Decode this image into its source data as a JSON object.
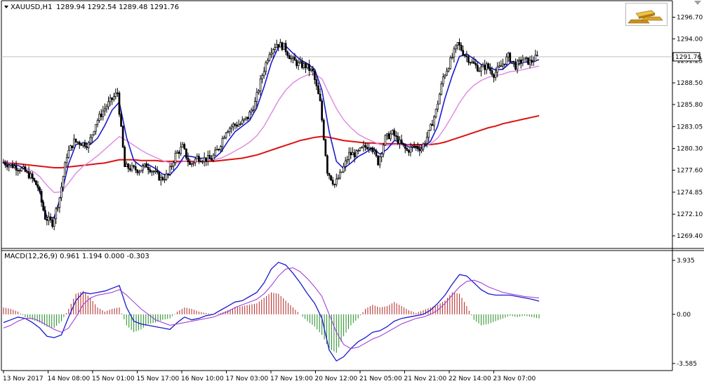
{
  "main_header": {
    "symbol_label": "XAUUSD,H1",
    "ohlc_text": "1289.94 1292.54 1289.48 1291.76"
  },
  "macd_header": {
    "text": "MACD(12,26,9) 0.961 1.194 0.000 -0.303"
  },
  "current_price_label": "1291.76",
  "colors": {
    "candles": "#000000",
    "fast_ma": "#1a1acd",
    "mid_ma": "#e08ee0",
    "slow_ma": "#dd1111",
    "macd_hist_pos": "#b22222",
    "macd_hist_neg": "#228b22",
    "macd_line": "#1a1acd",
    "signal_line": "#9b30d9",
    "price_line": "#c0c0c0"
  },
  "icons": {
    "gold_bars": "gold-bars-icon",
    "collapse": "collapse-icon"
  },
  "chart_data": [
    {
      "type": "candlestick",
      "ylim": [
        1268.0,
        1298.5
      ],
      "y_ticks": [
        "1296.70",
        "1294.00",
        "1291.25",
        "1288.50",
        "1285.80",
        "1283.05",
        "1280.30",
        "1277.60",
        "1274.85",
        "1272.10",
        "1269.40"
      ],
      "current_price": 1291.76,
      "x_ticks": [
        "13 Nov 2017",
        "14 Nov 08:00",
        "15 Nov 01:00",
        "15 Nov 17:00",
        "16 Nov 10:00",
        "17 Nov 03:00",
        "17 Nov 19:00",
        "20 Nov 12:00",
        "21 Nov 05:00",
        "21 Nov 21:00",
        "22 Nov 14:00",
        "23 Nov 07:00"
      ],
      "series": [
        {
          "kind": "close_path",
          "values": [
            1278.6,
            1278.3,
            1278.0,
            1277.6,
            1276.8,
            1275.5,
            1271.7,
            1271.0,
            1274.2,
            1279.5,
            1281.2,
            1281.0,
            1280.8,
            1283.5,
            1285.0,
            1286.2,
            1287.3,
            1278.0,
            1277.8,
            1277.6,
            1278.2,
            1277.4,
            1276.5,
            1277.0,
            1279.5,
            1280.5,
            1278.2,
            1279.2,
            1279.0,
            1279.0,
            1280.4,
            1282.6,
            1283.2,
            1283.4,
            1284.2,
            1286.0,
            1289.5,
            1292.4,
            1293.4,
            1293.0,
            1291.5,
            1290.8,
            1290.6,
            1289.8,
            1286.0,
            1277.5,
            1275.8,
            1277.4,
            1279.6,
            1279.6,
            1280.4,
            1280.8,
            1278.6,
            1281.6,
            1282.2,
            1281.0,
            1280.0,
            1280.6,
            1280.3,
            1282.2,
            1285.0,
            1289.2,
            1291.2,
            1293.4,
            1292.0,
            1291.0,
            1290.2,
            1290.6,
            1289.6,
            1290.6,
            1291.8,
            1290.6,
            1291.4,
            1291.1,
            1291.76
          ]
        },
        {
          "name": "",
          "kind": "fast_ma",
          "values": [
            1278.4,
            1278.3,
            1278.2,
            1277.7,
            1276.8,
            1275.0,
            1271.7,
            1271.7,
            1274.6,
            1278.4,
            1280.8,
            1281.0,
            1280.8,
            1281.6,
            1283.2,
            1285.1,
            1286.1,
            1281.7,
            1278.8,
            1278.1,
            1278.3,
            1277.8,
            1277.1,
            1277.0,
            1278.0,
            1279.4,
            1279.3,
            1279.1,
            1279.1,
            1279.0,
            1279.8,
            1281.2,
            1282.4,
            1283.1,
            1283.8,
            1285.4,
            1288.0,
            1291.0,
            1293.0,
            1293.1,
            1292.2,
            1291.4,
            1290.9,
            1290.2,
            1287.6,
            1282.4,
            1278.7,
            1277.8,
            1278.5,
            1279.3,
            1279.8,
            1280.4,
            1279.6,
            1280.2,
            1281.3,
            1281.1,
            1280.5,
            1280.4,
            1280.4,
            1281.2,
            1283.1,
            1286.6,
            1289.4,
            1291.8,
            1292.1,
            1291.5,
            1290.8,
            1290.5,
            1290.1,
            1290.2,
            1291.0,
            1290.8,
            1291.1,
            1291.1,
            1291.4
          ]
        },
        {
          "name": "",
          "kind": "mid_ma",
          "values": [
            1278.8,
            1278.5,
            1278.2,
            1277.9,
            1277.5,
            1276.8,
            1275.7,
            1274.8,
            1274.9,
            1276.0,
            1277.2,
            1278.1,
            1278.7,
            1279.4,
            1280.2,
            1281.0,
            1281.8,
            1281.3,
            1280.7,
            1280.1,
            1279.6,
            1279.2,
            1278.8,
            1278.5,
            1278.5,
            1278.7,
            1278.6,
            1278.7,
            1278.8,
            1278.9,
            1279.1,
            1279.5,
            1280.0,
            1280.5,
            1281.1,
            1281.9,
            1283.1,
            1284.7,
            1286.3,
            1287.6,
            1288.5,
            1289.1,
            1289.5,
            1289.6,
            1289.0,
            1287.1,
            1285.3,
            1283.9,
            1282.9,
            1282.1,
            1281.6,
            1281.2,
            1280.8,
            1280.7,
            1280.8,
            1280.8,
            1280.7,
            1280.6,
            1280.6,
            1280.9,
            1281.6,
            1282.9,
            1284.4,
            1286.0,
            1287.3,
            1288.2,
            1288.8,
            1289.2,
            1289.4,
            1289.6,
            1289.9,
            1290.0,
            1290.2,
            1290.4,
            1290.6
          ]
        },
        {
          "name": "",
          "kind": "slow_ma",
          "values": [
            1278.6,
            1278.5,
            1278.4,
            1278.3,
            1278.2,
            1278.1,
            1278.0,
            1277.9,
            1277.9,
            1278.0,
            1278.1,
            1278.2,
            1278.3,
            1278.4,
            1278.5,
            1278.7,
            1278.9,
            1278.9,
            1278.9,
            1278.8,
            1278.8,
            1278.8,
            1278.7,
            1278.7,
            1278.7,
            1278.7,
            1278.7,
            1278.7,
            1278.7,
            1278.7,
            1278.8,
            1278.9,
            1279.0,
            1279.1,
            1279.3,
            1279.5,
            1279.8,
            1280.1,
            1280.4,
            1280.7,
            1281.0,
            1281.3,
            1281.5,
            1281.7,
            1281.8,
            1281.7,
            1281.5,
            1281.3,
            1281.2,
            1281.1,
            1281.0,
            1281.0,
            1280.9,
            1280.9,
            1280.9,
            1280.8,
            1280.8,
            1280.8,
            1280.8,
            1280.8,
            1280.9,
            1281.1,
            1281.4,
            1281.7,
            1282.0,
            1282.3,
            1282.6,
            1282.9,
            1283.1,
            1283.4,
            1283.6,
            1283.8,
            1284.0,
            1284.2,
            1284.4
          ]
        }
      ]
    },
    {
      "type": "bar",
      "title": "MACD(12,26,9)",
      "ylim": [
        -4.0,
        4.5
      ],
      "y_ticks": [
        "3.935",
        "0.00",
        "-3.585"
      ],
      "series": [
        {
          "name": "",
          "kind": "histogram",
          "values": [
            0.5,
            0.4,
            0.2,
            -0.2,
            -0.4,
            -0.6,
            -0.9,
            -1.0,
            -0.5,
            0.4,
            1.5,
            1.7,
            1.2,
            0.5,
            0.2,
            0.4,
            0.5,
            -0.8,
            -1.3,
            -1.1,
            -0.7,
            -0.6,
            -0.4,
            -0.3,
            0.2,
            0.5,
            0.4,
            0.2,
            0.1,
            0.0,
            0.1,
            0.3,
            0.5,
            0.6,
            0.7,
            0.8,
            1.2,
            1.6,
            1.5,
            1.0,
            0.5,
            0.0,
            -0.5,
            -0.9,
            -1.5,
            -2.5,
            -2.8,
            -1.6,
            -0.8,
            -0.3,
            0.4,
            0.7,
            0.5,
            0.6,
            0.9,
            0.6,
            0.3,
            0.1,
            0.3,
            0.5,
            0.7,
            1.0,
            1.6,
            1.5,
            0.6,
            -0.4,
            -0.8,
            -0.7,
            -0.5,
            -0.3,
            -0.1,
            -0.2,
            -0.1,
            -0.2,
            -0.3
          ]
        },
        {
          "name": "",
          "kind": "macd_line",
          "values": [
            -0.6,
            -0.4,
            -0.2,
            -0.3,
            -0.6,
            -1.0,
            -1.6,
            -1.7,
            -1.5,
            -0.2,
            1.0,
            1.6,
            1.5,
            1.6,
            1.7,
            1.9,
            2.1,
            0.5,
            -0.5,
            -0.7,
            -0.8,
            -0.9,
            -1.0,
            -1.1,
            -0.6,
            -0.2,
            -0.4,
            -0.3,
            -0.1,
            0.0,
            0.3,
            0.6,
            0.9,
            1.0,
            1.3,
            1.6,
            2.3,
            3.3,
            3.8,
            3.6,
            3.0,
            2.3,
            1.5,
            0.8,
            -0.3,
            -2.6,
            -3.4,
            -3.1,
            -2.5,
            -2.0,
            -1.7,
            -1.3,
            -1.2,
            -0.9,
            -0.5,
            -0.3,
            -0.2,
            -0.1,
            0.0,
            0.3,
            0.8,
            1.4,
            2.2,
            2.9,
            2.8,
            2.3,
            1.8,
            1.5,
            1.4,
            1.4,
            1.4,
            1.3,
            1.2,
            1.1,
            0.96
          ]
        },
        {
          "name": "",
          "kind": "signal_line",
          "values": [
            -1.0,
            -0.8,
            -0.5,
            -0.3,
            -0.3,
            -0.5,
            -0.8,
            -1.1,
            -1.3,
            -1.0,
            -0.2,
            0.7,
            1.2,
            1.4,
            1.5,
            1.6,
            1.8,
            1.4,
            0.9,
            0.4,
            0.0,
            -0.4,
            -0.6,
            -0.8,
            -0.7,
            -0.6,
            -0.5,
            -0.4,
            -0.3,
            -0.2,
            0.0,
            0.2,
            0.5,
            0.7,
            0.9,
            1.1,
            1.5,
            2.1,
            2.8,
            3.3,
            3.4,
            3.1,
            2.6,
            2.0,
            1.3,
            0.0,
            -1.3,
            -2.2,
            -2.5,
            -2.4,
            -2.1,
            -1.8,
            -1.6,
            -1.3,
            -1.0,
            -0.7,
            -0.5,
            -0.3,
            -0.2,
            0.0,
            0.3,
            0.8,
            1.4,
            2.0,
            2.4,
            2.5,
            2.3,
            2.0,
            1.8,
            1.6,
            1.5,
            1.4,
            1.3,
            1.25,
            1.19
          ]
        }
      ]
    }
  ]
}
